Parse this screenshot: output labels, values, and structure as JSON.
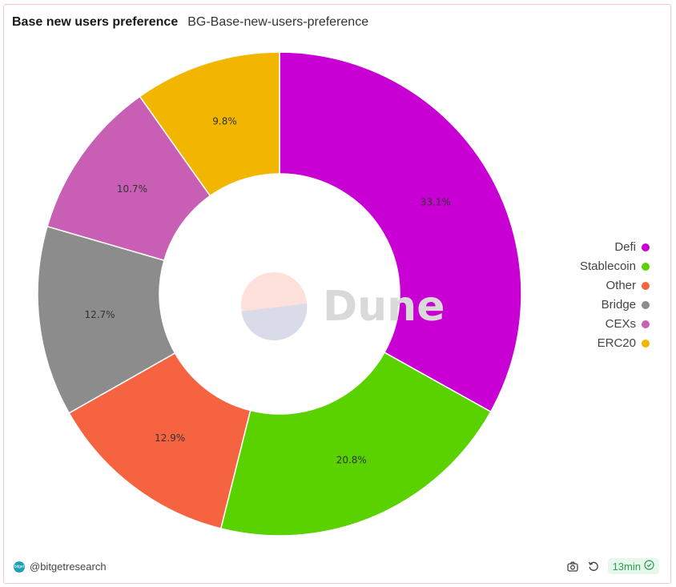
{
  "header": {
    "title": "Base new users preference",
    "subtitle": "BG-Base-new-users-preference"
  },
  "chart_data": {
    "type": "pie",
    "donut": true,
    "categories": [
      "Defi",
      "Stablecoin",
      "Other",
      "Bridge",
      "CEXs",
      "ERC20"
    ],
    "values": [
      33.1,
      20.8,
      12.9,
      12.7,
      10.7,
      9.8
    ],
    "labels": [
      "33.1%",
      "20.8%",
      "12.9%",
      "12.7%",
      "10.7%",
      "9.8%"
    ],
    "colors": [
      "#c800d4",
      "#59d200",
      "#f56340",
      "#8c8c8c",
      "#c95fb4",
      "#f2b600"
    ],
    "legend_position": "right"
  },
  "watermark": {
    "text": "Dune"
  },
  "footer": {
    "author": "@bitgetresearch",
    "brand_icon_text": "bitget",
    "refresh_label": "13min",
    "icons": [
      "camera-icon",
      "refresh-icon",
      "check-circle-icon"
    ]
  }
}
